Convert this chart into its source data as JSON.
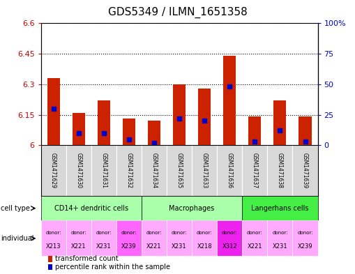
{
  "title": "GDS5349 / ILMN_1651358",
  "samples": [
    "GSM1471629",
    "GSM1471630",
    "GSM1471631",
    "GSM1471632",
    "GSM1471634",
    "GSM1471635",
    "GSM1471633",
    "GSM1471636",
    "GSM1471637",
    "GSM1471638",
    "GSM1471639"
  ],
  "transformed_count": [
    6.33,
    6.16,
    6.22,
    6.13,
    6.12,
    6.3,
    6.28,
    6.44,
    6.14,
    6.22,
    6.14
  ],
  "percentile_rank": [
    30,
    10,
    10,
    5,
    2,
    22,
    20,
    48,
    3,
    12,
    3
  ],
  "y_min": 6.0,
  "y_max": 6.6,
  "y_ticks": [
    6.0,
    6.15,
    6.3,
    6.45,
    6.6
  ],
  "y_tick_labels": [
    "6",
    "6.15",
    "6.3",
    "6.45",
    "6.6"
  ],
  "y2_ticks": [
    0,
    25,
    50,
    75,
    100
  ],
  "y2_tick_labels": [
    "0",
    "25",
    "50",
    "75",
    "100%"
  ],
  "bar_color": "#cc2200",
  "dot_color": "#0000cc",
  "bar_width": 0.5,
  "dot_size": 4,
  "cell_type_groups": [
    {
      "label": "CD14+ dendritic cells",
      "start": 0,
      "end": 3,
      "color": "#aaffaa"
    },
    {
      "label": "Macrophages",
      "start": 4,
      "end": 7,
      "color": "#aaffaa"
    },
    {
      "label": "Langerhans cells",
      "start": 8,
      "end": 10,
      "color": "#44ee44"
    }
  ],
  "ind_colors": [
    "#ffaaff",
    "#ffaaff",
    "#ffaaff",
    "#ff66ff",
    "#ffaaff",
    "#ffaaff",
    "#ffaaff",
    "#ee22ee",
    "#ffaaff",
    "#ffaaff",
    "#ffaaff"
  ],
  "donors": [
    "X213",
    "X221",
    "X231",
    "X239",
    "X221",
    "X231",
    "X218",
    "X312",
    "X221",
    "X231",
    "X239"
  ],
  "label_color_red": "#cc0000",
  "label_color_blue": "#0000cc",
  "grey_bg": "#d8d8d8"
}
